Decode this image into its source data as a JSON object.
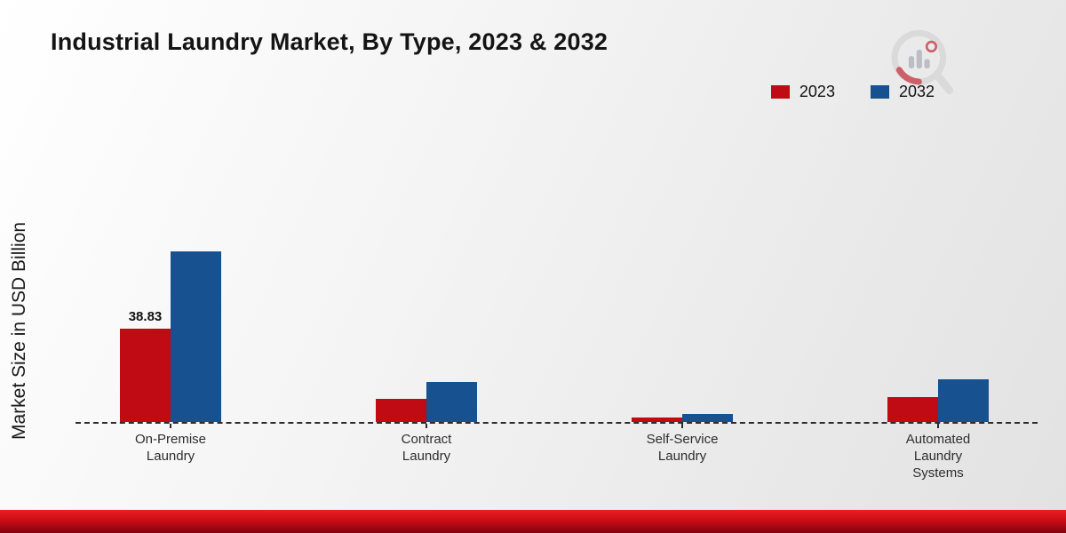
{
  "page": {
    "title": "Industrial Laundry Market, By Type, 2023 & 2032"
  },
  "axis": {
    "y_label": "Market Size in USD Billion"
  },
  "legend": [
    {
      "label": "2023",
      "color": "#c00a14"
    },
    {
      "label": "2032",
      "color": "#17518f"
    }
  ],
  "chart_data": {
    "type": "bar",
    "title": "Industrial Laundry Market, By Type, 2023 & 2032",
    "ylabel": "Market Size in USD Billion",
    "categories": [
      "On-Premise\nLaundry",
      "Contract\nLaundry",
      "Self-Service\nLaundry",
      "Automated\nLaundry\nSystems"
    ],
    "series": [
      {
        "name": "2023",
        "color": "#c00a14",
        "values": [
          38.83,
          9.5,
          2.0,
          10.5
        ]
      },
      {
        "name": "2032",
        "color": "#17518f",
        "values": [
          71.0,
          16.8,
          3.3,
          17.8
        ]
      }
    ],
    "annotations": [
      {
        "series": "2023",
        "category_index": 0,
        "text": "38.83"
      }
    ],
    "ylim": [
      0,
      80
    ],
    "grid": false,
    "baseline_style": "dashed",
    "legend_position": "top-right"
  }
}
